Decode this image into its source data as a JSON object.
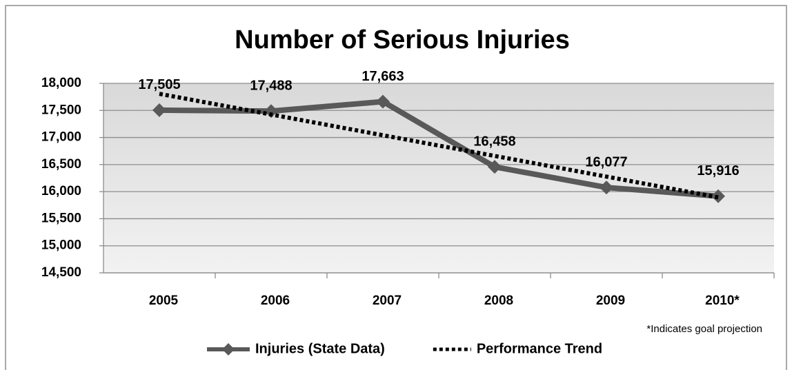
{
  "chart_data": {
    "type": "line",
    "title": "Number of Serious Injuries",
    "categories": [
      "2005",
      "2006",
      "2007",
      "2008",
      "2009",
      "2010*"
    ],
    "series": [
      {
        "name": "Injuries (State Data)",
        "color": "#595959",
        "style": "solid",
        "marker": "diamond",
        "values": [
          17505,
          17488,
          17663,
          16458,
          16077,
          15916
        ],
        "value_labels": [
          "17,505",
          "17,488",
          "17,663",
          "16,458",
          "16,077",
          "15,916"
        ]
      },
      {
        "name": "Performance Trend",
        "color": "#000000",
        "style": "dotted",
        "values": [
          17807,
          17425,
          17042,
          16660,
          16278,
          15895
        ]
      }
    ],
    "ylim": [
      14500,
      18000
    ],
    "yticks": [
      {
        "value": 14500,
        "label": "14,500"
      },
      {
        "value": 15000,
        "label": "15,000"
      },
      {
        "value": 15500,
        "label": "15,500"
      },
      {
        "value": 16000,
        "label": "16,000"
      },
      {
        "value": 16500,
        "label": "16,500"
      },
      {
        "value": 17000,
        "label": "17,000"
      },
      {
        "value": 17500,
        "label": "17,500"
      },
      {
        "value": 18000,
        "label": "18,000"
      }
    ],
    "grid": true,
    "legend": "bottom",
    "annotation": "*Indicates goal projection"
  }
}
